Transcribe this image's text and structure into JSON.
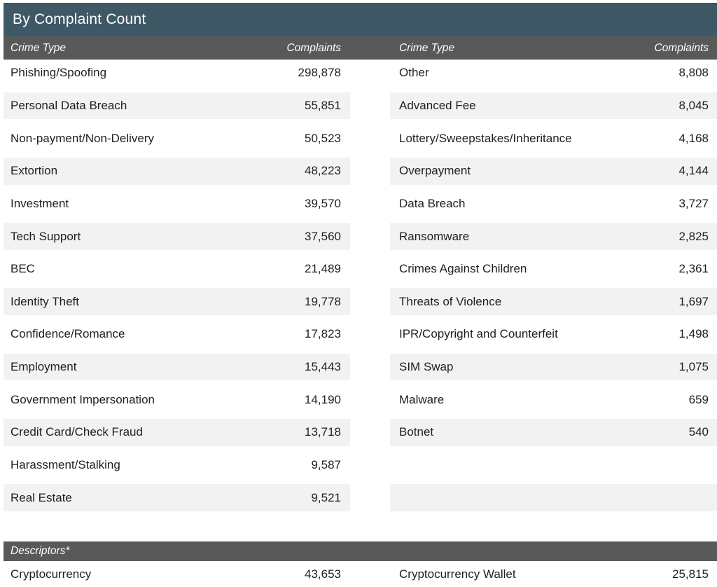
{
  "title": "By Complaint Count",
  "colors": {
    "title_bar_bg": "#3E5866",
    "header_band_bg": "#595959",
    "alt_row_bg": "#F2F2F2",
    "header_text": "#FFFFFF",
    "body_text": "#1F1F1F"
  },
  "tables": {
    "headers": {
      "crime_type": "Crime Type",
      "complaints": "Complaints"
    },
    "left_rows": [
      {
        "crime_type": "Phishing/Spoofing",
        "complaints": "298,878"
      },
      {
        "crime_type": "Personal Data Breach",
        "complaints": "55,851"
      },
      {
        "crime_type": "Non-payment/Non-Delivery",
        "complaints": "50,523"
      },
      {
        "crime_type": "Extortion",
        "complaints": "48,223"
      },
      {
        "crime_type": "Investment",
        "complaints": "39,570"
      },
      {
        "crime_type": "Tech Support",
        "complaints": "37,560"
      },
      {
        "crime_type": "BEC",
        "complaints": "21,489"
      },
      {
        "crime_type": "Identity Theft",
        "complaints": "19,778"
      },
      {
        "crime_type": "Confidence/Romance",
        "complaints": "17,823"
      },
      {
        "crime_type": "Employment",
        "complaints": "15,443"
      },
      {
        "crime_type": "Government Impersonation",
        "complaints": "14,190"
      },
      {
        "crime_type": "Credit Card/Check Fraud",
        "complaints": "13,718"
      },
      {
        "crime_type": "Harassment/Stalking",
        "complaints": "9,587"
      },
      {
        "crime_type": "Real Estate",
        "complaints": "9,521"
      }
    ],
    "right_rows": [
      {
        "crime_type": "Other",
        "complaints": "8,808"
      },
      {
        "crime_type": "Advanced Fee",
        "complaints": "8,045"
      },
      {
        "crime_type": "Lottery/Sweepstakes/Inheritance",
        "complaints": "4,168"
      },
      {
        "crime_type": "Overpayment",
        "complaints": "4,144"
      },
      {
        "crime_type": "Data Breach",
        "complaints": "3,727"
      },
      {
        "crime_type": "Ransomware",
        "complaints": "2,825"
      },
      {
        "crime_type": "Crimes Against Children",
        "complaints": "2,361"
      },
      {
        "crime_type": "Threats of Violence",
        "complaints": "1,697"
      },
      {
        "crime_type": "IPR/Copyright and Counterfeit",
        "complaints": "1,498"
      },
      {
        "crime_type": "SIM Swap",
        "complaints": "1,075"
      },
      {
        "crime_type": "Malware",
        "complaints": "659"
      },
      {
        "crime_type": "Botnet",
        "complaints": "540"
      },
      {
        "crime_type": "",
        "complaints": ""
      },
      {
        "crime_type": "",
        "complaints": ""
      }
    ]
  },
  "descriptors": {
    "label": "Descriptors*",
    "left_row": {
      "crime_type": "Cryptocurrency",
      "complaints": "43,653"
    },
    "right_row": {
      "crime_type": "Cryptocurrency Wallet",
      "complaints": "25,815"
    }
  },
  "chart_data": {
    "type": "table",
    "title": "By Complaint Count",
    "columns": [
      "Crime Type",
      "Complaints"
    ],
    "rows": [
      [
        "Phishing/Spoofing",
        298878
      ],
      [
        "Personal Data Breach",
        55851
      ],
      [
        "Non-payment/Non-Delivery",
        50523
      ],
      [
        "Extortion",
        48223
      ],
      [
        "Investment",
        39570
      ],
      [
        "Tech Support",
        37560
      ],
      [
        "BEC",
        21489
      ],
      [
        "Identity Theft",
        19778
      ],
      [
        "Confidence/Romance",
        17823
      ],
      [
        "Employment",
        15443
      ],
      [
        "Government Impersonation",
        14190
      ],
      [
        "Credit Card/Check Fraud",
        13718
      ],
      [
        "Harassment/Stalking",
        9587
      ],
      [
        "Real Estate",
        9521
      ],
      [
        "Other",
        8808
      ],
      [
        "Advanced Fee",
        8045
      ],
      [
        "Lottery/Sweepstakes/Inheritance",
        4168
      ],
      [
        "Overpayment",
        4144
      ],
      [
        "Data Breach",
        3727
      ],
      [
        "Ransomware",
        2825
      ],
      [
        "Crimes Against Children",
        2361
      ],
      [
        "Threats of Violence",
        1697
      ],
      [
        "IPR/Copyright and Counterfeit",
        1498
      ],
      [
        "SIM Swap",
        1075
      ],
      [
        "Malware",
        659
      ],
      [
        "Botnet",
        540
      ]
    ],
    "descriptor_rows": [
      [
        "Cryptocurrency",
        43653
      ],
      [
        "Cryptocurrency Wallet",
        25815
      ]
    ]
  }
}
